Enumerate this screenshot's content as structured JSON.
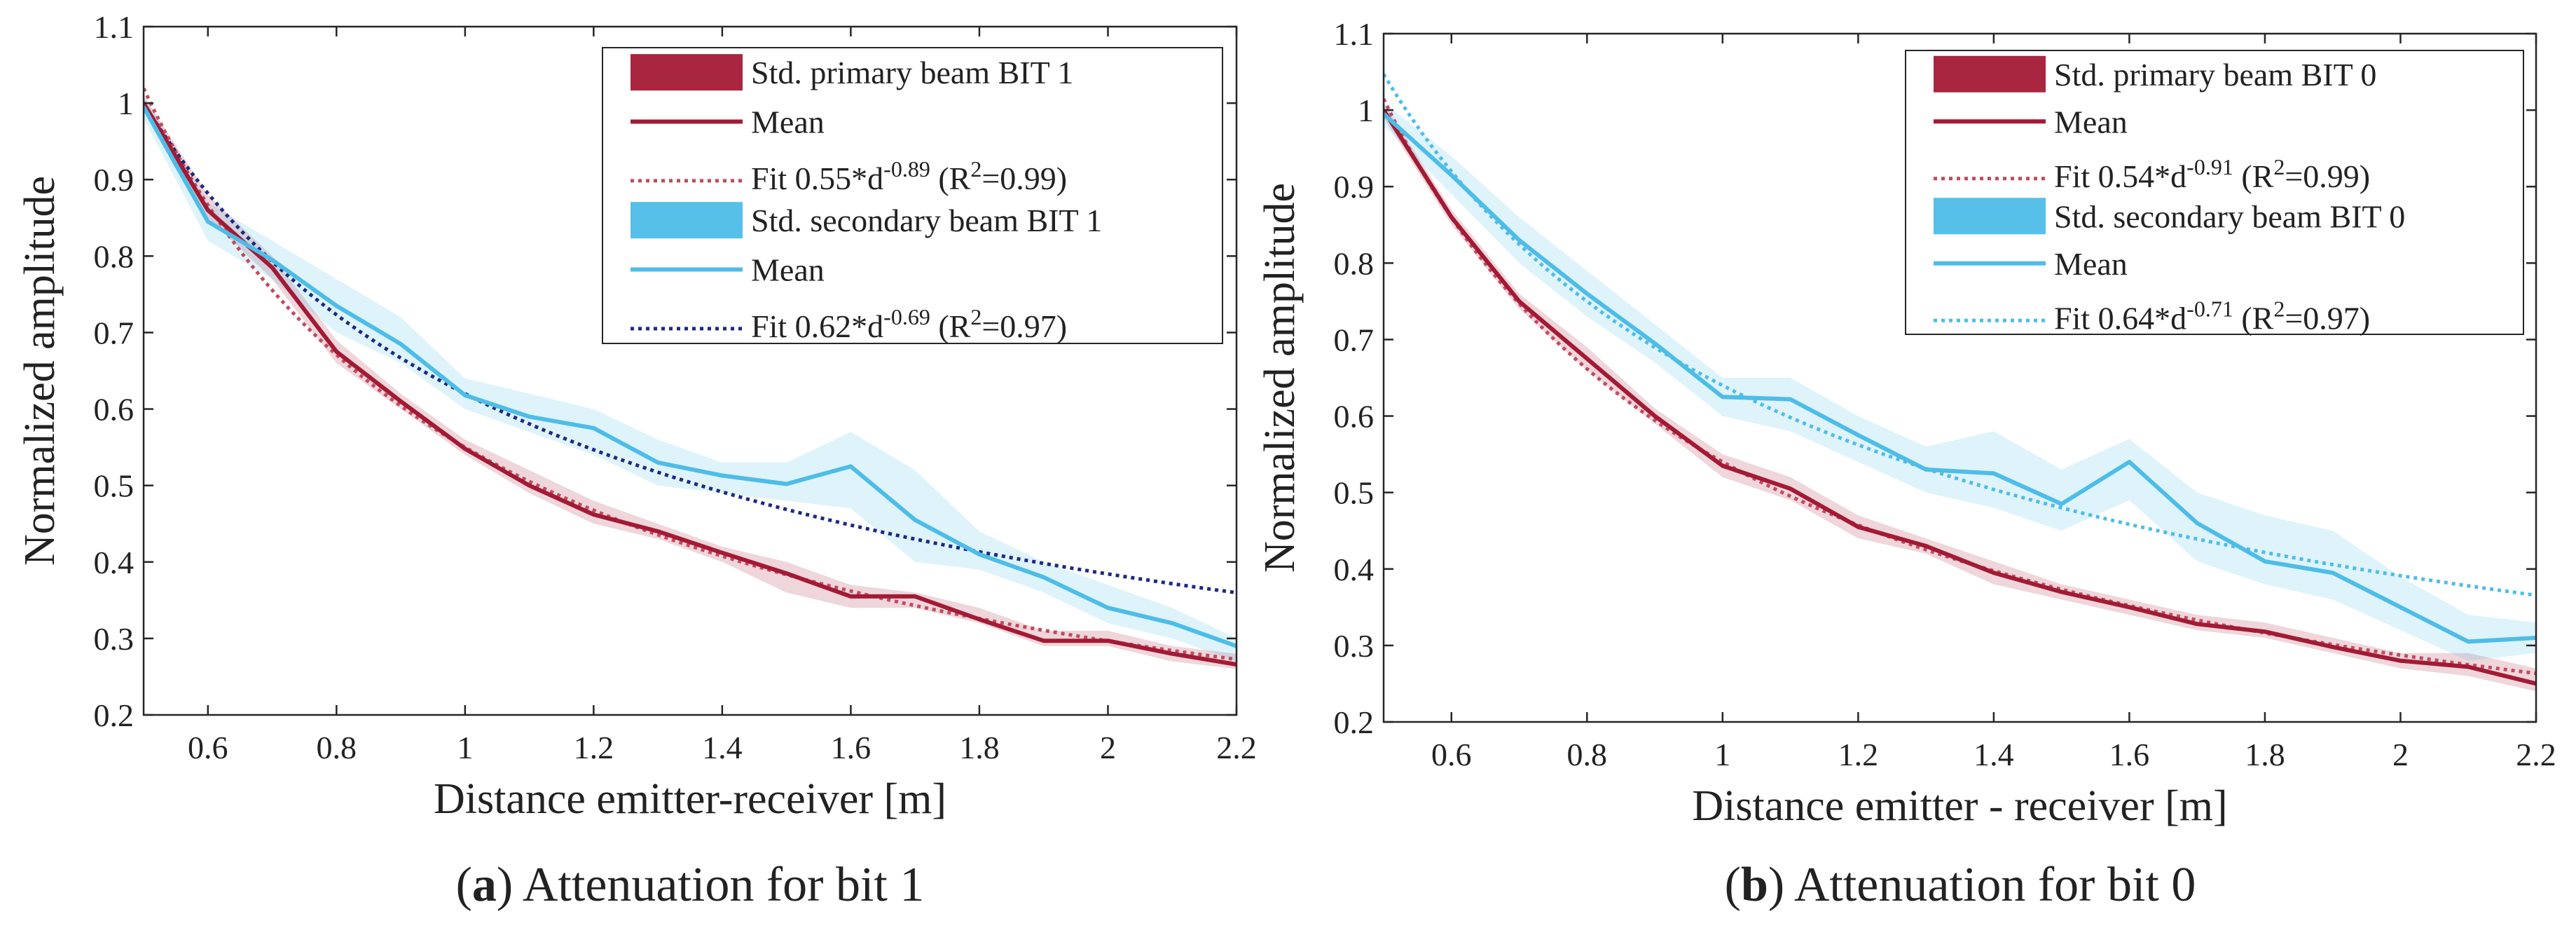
{
  "chart_data": [
    {
      "type": "line",
      "panel_letter": "a",
      "caption": ") Attenuation for bit 1",
      "xlabel": "Distance emitter-receiver [m]",
      "ylabel": "Normalized amplitude",
      "xlim": [
        0.5,
        2.2
      ],
      "ylim": [
        0.2,
        1.1
      ],
      "xticks": [
        0.6,
        0.8,
        1,
        1.2,
        1.4,
        1.6,
        1.8,
        2,
        2.2
      ],
      "xtick_labels": [
        "0.6",
        "0.8",
        "1",
        "1.2",
        "1.4",
        "1.6",
        "1.8",
        "2",
        "2.2"
      ],
      "yticks": [
        0.2,
        0.3,
        0.4,
        0.5,
        0.6,
        0.7,
        0.8,
        0.9,
        1,
        1.1
      ],
      "ytick_labels": [
        "0.2",
        "0.3",
        "0.4",
        "0.5",
        "0.6",
        "0.7",
        "0.8",
        "0.9",
        "1",
        "1.1"
      ],
      "legend_position": "top-right",
      "x": [
        0.5,
        0.6,
        0.7,
        0.8,
        0.9,
        1.0,
        1.1,
        1.2,
        1.3,
        1.4,
        1.5,
        1.6,
        1.7,
        1.8,
        1.9,
        2.0,
        2.1,
        2.2
      ],
      "series": [
        {
          "name": "Std. primary beam BIT 1",
          "kind": "band",
          "color": "#a31a35",
          "lower": [
            0.99,
            0.85,
            0.77,
            0.66,
            0.6,
            0.54,
            0.49,
            0.45,
            0.43,
            0.4,
            0.36,
            0.34,
            0.34,
            0.32,
            0.29,
            0.29,
            0.27,
            0.26
          ],
          "upper": [
            1.01,
            0.88,
            0.8,
            0.69,
            0.62,
            0.56,
            0.52,
            0.48,
            0.45,
            0.42,
            0.4,
            0.37,
            0.36,
            0.34,
            0.31,
            0.31,
            0.29,
            0.28
          ]
        },
        {
          "name": "Mean",
          "kind": "line",
          "color": "#a31a35",
          "values": [
            1.0,
            0.86,
            0.785,
            0.675,
            0.61,
            0.548,
            0.5,
            0.462,
            0.44,
            0.412,
            0.385,
            0.355,
            0.355,
            0.325,
            0.297,
            0.297,
            0.28,
            0.266
          ]
        },
        {
          "name": "Fit 0.55*d^-0.89 (R²=0.99)",
          "kind": "fit",
          "color": "#c24a5e",
          "a": 0.55,
          "b": -0.89,
          "label_main": "Fit 0.55*d",
          "label_exp": "-0.89",
          "label_r": " (R",
          "label_r2": "2",
          "label_tail": "=0.99)"
        },
        {
          "name": "Std. secondary beam BIT 1",
          "kind": "band",
          "color": "#4dbde8",
          "lower": [
            0.98,
            0.82,
            0.77,
            0.7,
            0.66,
            0.6,
            0.57,
            0.54,
            0.5,
            0.49,
            0.48,
            0.47,
            0.4,
            0.39,
            0.36,
            0.32,
            0.3,
            0.27
          ],
          "upper": [
            1.01,
            0.87,
            0.82,
            0.77,
            0.72,
            0.64,
            0.62,
            0.6,
            0.56,
            0.53,
            0.53,
            0.57,
            0.52,
            0.44,
            0.4,
            0.37,
            0.34,
            0.3
          ]
        },
        {
          "name": "Mean",
          "kind": "line",
          "color": "#4dbde8",
          "values": [
            0.995,
            0.845,
            0.795,
            0.735,
            0.685,
            0.618,
            0.59,
            0.575,
            0.53,
            0.513,
            0.502,
            0.525,
            0.455,
            0.41,
            0.38,
            0.34,
            0.32,
            0.29
          ]
        },
        {
          "name": "Fit 0.62*d^-0.69 (R²=0.97)",
          "kind": "fit",
          "color": "#1b2a80",
          "a": 0.62,
          "b": -0.69,
          "label_main": "Fit 0.62*d",
          "label_exp": "-0.69",
          "label_r": " (R",
          "label_r2": "2",
          "label_tail": "=0.97)"
        }
      ],
      "legend_labels": [
        "Std. primary beam BIT 1",
        "Mean",
        "Fit 0.55*d",
        "Std. secondary beam BIT 1",
        "Mean",
        "Fit 0.62*d"
      ]
    },
    {
      "type": "line",
      "panel_letter": "b",
      "caption": ") Attenuation for bit 0",
      "xlabel": "Distance emitter - receiver [m]",
      "ylabel": "Normalized amplitude",
      "xlim": [
        0.5,
        2.2
      ],
      "ylim": [
        0.2,
        1.1
      ],
      "xticks": [
        0.6,
        0.8,
        1,
        1.2,
        1.4,
        1.6,
        1.8,
        2,
        2.2
      ],
      "xtick_labels": [
        "0.6",
        "0.8",
        "1",
        "1.2",
        "1.4",
        "1.6",
        "1.8",
        "2",
        "2.2"
      ],
      "yticks": [
        0.2,
        0.3,
        0.4,
        0.5,
        0.6,
        0.7,
        0.8,
        0.9,
        1,
        1.1
      ],
      "ytick_labels": [
        "0.2",
        "0.3",
        "0.4",
        "0.5",
        "0.6",
        "0.7",
        "0.8",
        "0.9",
        "1",
        "1.1"
      ],
      "legend_position": "top-right",
      "x": [
        0.5,
        0.6,
        0.7,
        0.8,
        0.9,
        1.0,
        1.1,
        1.2,
        1.3,
        1.4,
        1.5,
        1.6,
        1.7,
        1.8,
        1.9,
        2.0,
        2.1,
        2.2
      ],
      "series": [
        {
          "name": "Std. primary beam BIT 0",
          "kind": "band",
          "color": "#a31a35",
          "lower": [
            0.99,
            0.85,
            0.74,
            0.66,
            0.59,
            0.52,
            0.49,
            0.44,
            0.42,
            0.38,
            0.36,
            0.34,
            0.32,
            0.31,
            0.29,
            0.27,
            0.26,
            0.24
          ],
          "upper": [
            1.01,
            0.87,
            0.76,
            0.69,
            0.61,
            0.55,
            0.52,
            0.47,
            0.44,
            0.41,
            0.38,
            0.36,
            0.34,
            0.33,
            0.31,
            0.29,
            0.29,
            0.27
          ]
        },
        {
          "name": "Mean",
          "kind": "line",
          "color": "#a31a35",
          "values": [
            1.0,
            0.86,
            0.75,
            0.675,
            0.6,
            0.535,
            0.505,
            0.455,
            0.43,
            0.395,
            0.37,
            0.35,
            0.328,
            0.318,
            0.298,
            0.28,
            0.272,
            0.25
          ]
        },
        {
          "name": "Fit 0.54*d^-0.91 (R²=0.99)",
          "kind": "fit",
          "color": "#c24a5e",
          "a": 0.54,
          "b": -0.91,
          "label_main": "Fit 0.54*d",
          "label_exp": "-0.91",
          "label_r": " (R",
          "label_r2": "2",
          "label_tail": "=0.99)"
        },
        {
          "name": "Std. secondary beam BIT 0",
          "kind": "band",
          "color": "#4dbde8",
          "lower": [
            0.98,
            0.89,
            0.8,
            0.73,
            0.67,
            0.6,
            0.58,
            0.54,
            0.5,
            0.48,
            0.45,
            0.49,
            0.41,
            0.38,
            0.36,
            0.32,
            0.28,
            0.29
          ],
          "upper": [
            1.01,
            0.94,
            0.86,
            0.79,
            0.72,
            0.65,
            0.65,
            0.6,
            0.56,
            0.58,
            0.53,
            0.57,
            0.5,
            0.47,
            0.45,
            0.39,
            0.34,
            0.33
          ]
        },
        {
          "name": "Mean",
          "kind": "line",
          "color": "#4dbde8",
          "values": [
            0.995,
            0.915,
            0.83,
            0.76,
            0.695,
            0.625,
            0.622,
            0.575,
            0.53,
            0.525,
            0.485,
            0.54,
            0.46,
            0.41,
            0.395,
            0.35,
            0.305,
            0.31
          ]
        },
        {
          "name": "Fit 0.64*d^-0.71 (R²=0.97)",
          "kind": "fit",
          "color": "#4dbde8",
          "a": 0.64,
          "b": -0.71,
          "label_main": "Fit 0.64*d",
          "label_exp": "-0.71",
          "label_r": " (R",
          "label_r2": "2",
          "label_tail": "=0.97)"
        }
      ],
      "legend_labels": [
        "Std. primary beam BIT 0",
        "Mean",
        "Fit 0.54*d",
        "Std. secondary beam BIT 0",
        "Mean",
        "Fit 0.64*d"
      ]
    }
  ]
}
